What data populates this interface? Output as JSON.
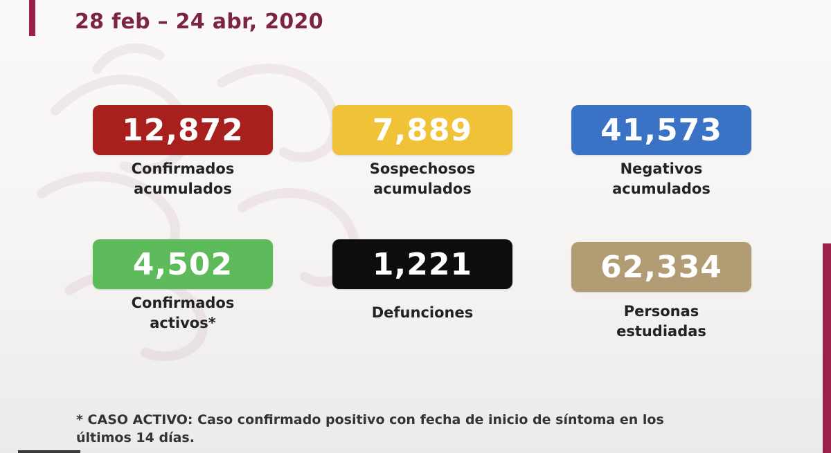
{
  "header": {
    "date_range": "28 feb – 24 abr, 2020"
  },
  "stats": [
    {
      "value": "12,872",
      "label_line1": "Confirmados",
      "label_line2": "acumulados",
      "color": "#a8201e"
    },
    {
      "value": "7,889",
      "label_line1": "Sospechosos",
      "label_line2": "acumulados",
      "color": "#f0c238"
    },
    {
      "value": "41,573",
      "label_line1": "Negativos",
      "label_line2": "acumulados",
      "color": "#3a72c6"
    },
    {
      "value": "4,502",
      "label_line1": "Confirmados",
      "label_line2": "activos*",
      "color": "#5dbb5c"
    },
    {
      "value": "1,221",
      "label_line1": "Defunciones",
      "label_line2": "",
      "color": "#0d0d0d"
    },
    {
      "value": "62,334",
      "label_line1": "Personas",
      "label_line2": "estudiadas",
      "color": "#b29c74"
    }
  ],
  "footnote": {
    "line1": "* CASO ACTIVO: Caso confirmado positivo con fecha de inicio de síntoma en los",
    "line2": "últimos 14 días."
  },
  "colors": {
    "brand": "#9b2148",
    "title": "#7d2346"
  }
}
